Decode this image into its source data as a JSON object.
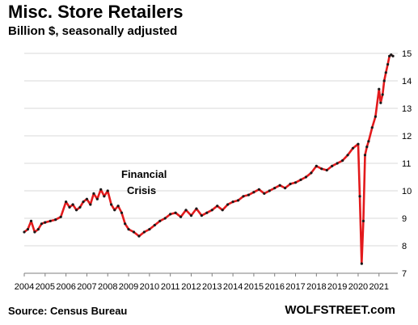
{
  "chart_data": {
    "type": "line",
    "title": "Misc. Store Retailers",
    "subtitle": "Billion $, seasonally adjusted",
    "source": "Source: Census Bureau",
    "brand": "WOLFSTREET.com",
    "annotation": "Financial Crisis",
    "xlabel": "",
    "ylabel": "",
    "ylim": [
      7,
      15
    ],
    "xlim": [
      2004,
      2021.9
    ],
    "y_ticks": [
      "7",
      "8",
      "9",
      "10",
      "11",
      "12",
      "13",
      "14",
      "15"
    ],
    "x_ticks": [
      "2004",
      "2005",
      "2006",
      "2007",
      "2008",
      "2009",
      "2010",
      "2011",
      "2012",
      "2013",
      "2014",
      "2015",
      "2016",
      "2017",
      "2018",
      "2019",
      "2020",
      "2021"
    ],
    "grid": "horizontal",
    "y_axis_side": "right",
    "line_color": "#e31a1c",
    "marker_color": "#1a1a1a",
    "series": [
      {
        "x": [
          2004.0,
          2004.17,
          2004.33,
          2004.5,
          2004.67,
          2004.83,
          2005.0,
          2005.25,
          2005.5,
          2005.75,
          2006.0,
          2006.17,
          2006.33,
          2006.5,
          2006.67,
          2006.83,
          2007.0,
          2007.17,
          2007.33,
          2007.5,
          2007.67,
          2007.83,
          2008.0,
          2008.17,
          2008.33,
          2008.5,
          2008.67,
          2008.83,
          2009.0,
          2009.25,
          2009.5,
          2009.75,
          2010.0,
          2010.25,
          2010.5,
          2010.75,
          2011.0,
          2011.25,
          2011.5,
          2011.75,
          2012.0,
          2012.25,
          2012.5,
          2012.75,
          2013.0,
          2013.25,
          2013.5,
          2013.75,
          2014.0,
          2014.25,
          2014.5,
          2014.75,
          2015.0,
          2015.25,
          2015.5,
          2015.75,
          2016.0,
          2016.25,
          2016.5,
          2016.75,
          2017.0,
          2017.25,
          2017.5,
          2017.75,
          2018.0,
          2018.25,
          2018.5,
          2018.75,
          2019.0,
          2019.25,
          2019.5,
          2019.75,
          2020.0,
          2020.08,
          2020.17,
          2020.25,
          2020.33,
          2020.42,
          2020.5,
          2020.67,
          2020.83,
          2021.0,
          2021.08,
          2021.17,
          2021.25,
          2021.33,
          2021.42,
          2021.5,
          2021.58,
          2021.67
        ],
        "y": [
          8.5,
          8.6,
          8.9,
          8.5,
          8.6,
          8.8,
          8.85,
          8.9,
          8.95,
          9.05,
          9.6,
          9.4,
          9.5,
          9.3,
          9.4,
          9.6,
          9.7,
          9.5,
          9.9,
          9.7,
          10.05,
          9.8,
          10.0,
          9.5,
          9.3,
          9.45,
          9.2,
          8.8,
          8.6,
          8.5,
          8.35,
          8.5,
          8.6,
          8.75,
          8.9,
          9.0,
          9.15,
          9.2,
          9.05,
          9.3,
          9.1,
          9.35,
          9.1,
          9.2,
          9.3,
          9.45,
          9.3,
          9.5,
          9.6,
          9.65,
          9.8,
          9.85,
          9.95,
          10.05,
          9.9,
          10.0,
          10.1,
          10.2,
          10.1,
          10.25,
          10.3,
          10.4,
          10.5,
          10.65,
          10.9,
          10.8,
          10.75,
          10.9,
          11.0,
          11.1,
          11.3,
          11.55,
          11.7,
          9.8,
          7.35,
          8.9,
          11.3,
          11.6,
          11.8,
          12.3,
          12.7,
          13.7,
          13.2,
          13.5,
          14.0,
          14.3,
          14.6,
          14.9,
          14.95,
          14.9
        ]
      }
    ]
  }
}
